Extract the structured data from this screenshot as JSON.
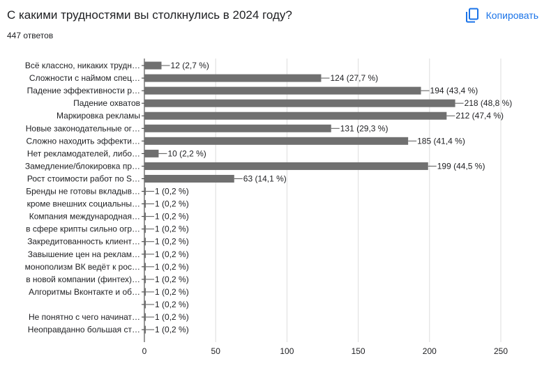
{
  "header": {
    "question_title": "С какими трудностями вы столкнулись в 2024 году?",
    "copy_label": "Копировать",
    "copy_icon": "copy-icon",
    "response_count": "447 ответов"
  },
  "colors": {
    "bar": "#707070",
    "accent": "#1a73e8",
    "axis": "#333333",
    "gridline": "#dcdcdc",
    "text": "#202124"
  },
  "chart_data": {
    "type": "bar",
    "orientation": "horizontal",
    "categories": [
      "Всё классно, никаких трудн…",
      "Сложности с наймом спец…",
      "Падение эффективности р…",
      "Падение охватов",
      "Маркировка рекламы",
      "Новые законодательные ог…",
      "Сложно находить эффекти…",
      "Нет рекламодателей, либо…",
      "Замедление/блокировка пр…",
      "Рост стоимости работ по S…",
      "Бренды не готовы вкладыв…",
      "кроме внешних социальны…",
      "Компания международная…",
      "в сфере крипты сильно огр…",
      "Закредитованность клиент…",
      "Завышение цен на реклам…",
      "монополизм ВК ведёт к рос…",
      "в новой компании (финтех)…",
      "Алгоритмы Вконтакте и об…",
      "",
      "Не понятно с чего начинат…",
      "Неоправданно большая ст…"
    ],
    "values": [
      12,
      124,
      194,
      218,
      212,
      131,
      185,
      10,
      199,
      63,
      1,
      1,
      1,
      1,
      1,
      1,
      1,
      1,
      1,
      1,
      1,
      1
    ],
    "data_labels": [
      "12 (2,7 %)",
      "124 (27,7 %)",
      "194 (43,4 %)",
      "218 (48,8 %)",
      "212 (47,4 %)",
      "131 (29,3 %)",
      "185 (41,4 %)",
      "10 (2,2 %)",
      "199 (44,5 %)",
      "63 (14,1 %)",
      "1 (0,2 %)",
      "1 (0,2 %)",
      "1 (0,2 %)",
      "1 (0,2 %)",
      "1 (0,2 %)",
      "1 (0,2 %)",
      "1 (0,2 %)",
      "1 (0,2 %)",
      "1 (0,2 %)",
      "1 (0,2 %)",
      "1 (0,2 %)",
      "1 (0,2 %)"
    ],
    "xticks": [
      "0",
      "50",
      "100",
      "150",
      "200",
      "250"
    ],
    "xlim": [
      0,
      250
    ],
    "grid": true,
    "legend": "none"
  }
}
